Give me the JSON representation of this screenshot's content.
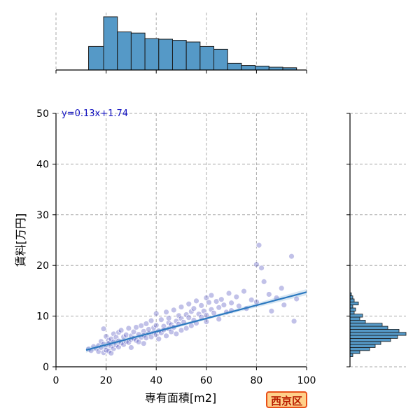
{
  "chart_data": {
    "type": "scatter",
    "xlabel": "専有面積[m2]",
    "ylabel": "賃料[万円]",
    "xlim": [
      0,
      100
    ],
    "ylim": [
      0,
      50
    ],
    "x_ticks": [
      0,
      20,
      40,
      60,
      80,
      100
    ],
    "y_ticks": [
      0,
      10,
      20,
      30,
      40,
      50
    ],
    "grid": true,
    "regression": {
      "slope": 0.13,
      "intercept": 1.74,
      "x_range": [
        12,
        100
      ],
      "label": "y=0.13x+1.74"
    },
    "points": [
      [
        13,
        3.5
      ],
      [
        14,
        3.2
      ],
      [
        15,
        4.0
      ],
      [
        16,
        3.6
      ],
      [
        17,
        4.2
      ],
      [
        17,
        3.0
      ],
      [
        18,
        5.0
      ],
      [
        18,
        3.8
      ],
      [
        19,
        7.5
      ],
      [
        19,
        4.5
      ],
      [
        19,
        2.8
      ],
      [
        20,
        6.0
      ],
      [
        20,
        4.0
      ],
      [
        20,
        3.3
      ],
      [
        21,
        5.2
      ],
      [
        21,
        4.6
      ],
      [
        21,
        3.1
      ],
      [
        22,
        5.5
      ],
      [
        22,
        4.1
      ],
      [
        22,
        2.7
      ],
      [
        23,
        6.5
      ],
      [
        23,
        4.9
      ],
      [
        23,
        3.6
      ],
      [
        24,
        5.8
      ],
      [
        24,
        4.3
      ],
      [
        25,
        6.8
      ],
      [
        25,
        5.1
      ],
      [
        25,
        3.9
      ],
      [
        26,
        7.2
      ],
      [
        26,
        4.7
      ],
      [
        27,
        5.9
      ],
      [
        27,
        4.4
      ],
      [
        28,
        6.3
      ],
      [
        28,
        5.0
      ],
      [
        29,
        7.6
      ],
      [
        29,
        4.8
      ],
      [
        30,
        6.1
      ],
      [
        30,
        5.4
      ],
      [
        30,
        3.8
      ],
      [
        31,
        6.9
      ],
      [
        31,
        5.6
      ],
      [
        32,
        7.8
      ],
      [
        32,
        5.2
      ],
      [
        33,
        6.4
      ],
      [
        33,
        4.9
      ],
      [
        34,
        8.1
      ],
      [
        34,
        5.8
      ],
      [
        35,
        7.0
      ],
      [
        35,
        6.2
      ],
      [
        35,
        4.6
      ],
      [
        36,
        8.5
      ],
      [
        36,
        5.7
      ],
      [
        37,
        6.6
      ],
      [
        37,
        7.4
      ],
      [
        38,
        9.1
      ],
      [
        38,
        5.9
      ],
      [
        39,
        6.8
      ],
      [
        39,
        7.7
      ],
      [
        40,
        10.5
      ],
      [
        40,
        6.3
      ],
      [
        40,
        8.2
      ],
      [
        41,
        7.1
      ],
      [
        41,
        5.5
      ],
      [
        42,
        9.3
      ],
      [
        42,
        6.7
      ],
      [
        43,
        8.0
      ],
      [
        43,
        7.3
      ],
      [
        44,
        10.8
      ],
      [
        44,
        6.1
      ],
      [
        45,
        8.7
      ],
      [
        45,
        7.5
      ],
      [
        45,
        9.6
      ],
      [
        46,
        6.9
      ],
      [
        46,
        8.3
      ],
      [
        47,
        11.2
      ],
      [
        47,
        7.8
      ],
      [
        48,
        9.0
      ],
      [
        48,
        6.5
      ],
      [
        49,
        8.4
      ],
      [
        49,
        10.1
      ],
      [
        50,
        9.5
      ],
      [
        50,
        7.2
      ],
      [
        50,
        11.8
      ],
      [
        51,
        8.8
      ],
      [
        52,
        10.3
      ],
      [
        52,
        7.6
      ],
      [
        53,
        9.7
      ],
      [
        53,
        12.4
      ],
      [
        54,
        8.1
      ],
      [
        54,
        10.9
      ],
      [
        55,
        11.5
      ],
      [
        55,
        9.2
      ],
      [
        56,
        13.0
      ],
      [
        56,
        8.6
      ],
      [
        57,
        10.4
      ],
      [
        58,
        12.1
      ],
      [
        58,
        9.8
      ],
      [
        59,
        11.0
      ],
      [
        60,
        13.6
      ],
      [
        60,
        10.2
      ],
      [
        60,
        8.9
      ],
      [
        61,
        12.7
      ],
      [
        62,
        11.3
      ],
      [
        62,
        14.1
      ],
      [
        63,
        10.6
      ],
      [
        64,
        12.9
      ],
      [
        65,
        11.7
      ],
      [
        65,
        9.4
      ],
      [
        66,
        13.3
      ],
      [
        67,
        12.2
      ],
      [
        68,
        10.8
      ],
      [
        69,
        14.5
      ],
      [
        70,
        12.6
      ],
      [
        70,
        11.1
      ],
      [
        72,
        13.8
      ],
      [
        73,
        12.0
      ],
      [
        75,
        14.9
      ],
      [
        76,
        11.5
      ],
      [
        78,
        13.2
      ],
      [
        80,
        12.8
      ],
      [
        80,
        20.2
      ],
      [
        81,
        24.0
      ],
      [
        82,
        19.5
      ],
      [
        83,
        16.8
      ],
      [
        85,
        14.3
      ],
      [
        86,
        11.0
      ],
      [
        88,
        13.6
      ],
      [
        90,
        15.5
      ],
      [
        91,
        12.2
      ],
      [
        94,
        21.8
      ],
      [
        95,
        9.0
      ],
      [
        96,
        13.4
      ]
    ],
    "top_histogram": {
      "bin_edges": [
        13,
        19,
        24.5,
        30,
        35.5,
        41,
        46.5,
        52,
        57.5,
        63,
        68.5,
        74,
        79.5,
        85,
        90.5,
        96
      ],
      "counts": [
        42,
        95,
        68,
        66,
        56,
        55,
        53,
        50,
        42,
        37,
        12,
        8,
        7,
        5,
        4
      ]
    },
    "right_histogram": {
      "bin_edges": [
        2,
        2.6,
        3.2,
        3.8,
        4.4,
        5.0,
        5.6,
        6.2,
        6.8,
        7.4,
        8.0,
        8.6,
        9.2,
        9.8,
        10.4,
        11.0,
        11.6,
        12.2,
        12.8,
        13.4,
        14.0,
        14.6
      ],
      "counts": [
        4,
        14,
        28,
        36,
        44,
        58,
        68,
        80,
        70,
        54,
        46,
        22,
        14,
        18,
        6,
        8,
        4,
        12,
        6,
        4,
        2
      ]
    }
  },
  "badge": {
    "label": "西京区"
  },
  "colors": {
    "hist_fill": "#5599c7",
    "hist_edge": "#1a1a1a",
    "scatter": "#1f1fae",
    "regression": "#2a78bf",
    "grid": "#aaaaaa"
  }
}
